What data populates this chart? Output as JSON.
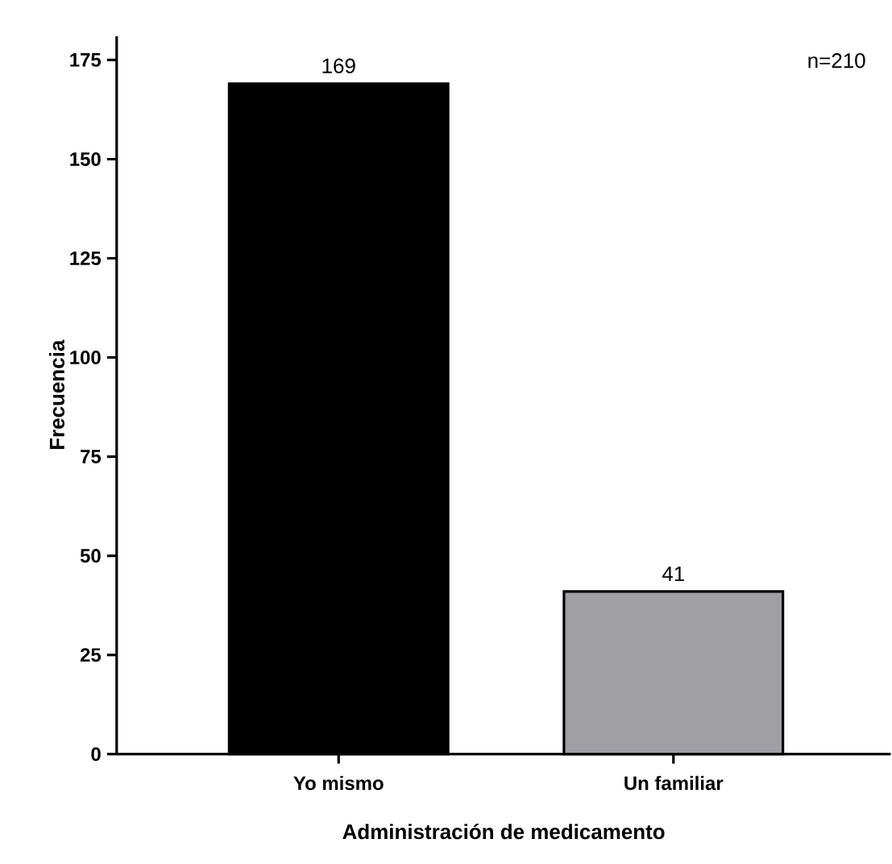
{
  "chart_data": {
    "type": "bar",
    "categories": [
      "Yo mismo",
      "Un familiar"
    ],
    "values": [
      169,
      41
    ],
    "colors": [
      "#000000",
      "#a09fa4"
    ],
    "xlabel": "Administración de medicamento",
    "ylabel": "Frecuencia",
    "ylim": [
      0,
      181
    ],
    "yticks": [
      0,
      25,
      50,
      75,
      100,
      125,
      150,
      175
    ],
    "data_labels": true,
    "annotations": [
      "n=210"
    ]
  }
}
